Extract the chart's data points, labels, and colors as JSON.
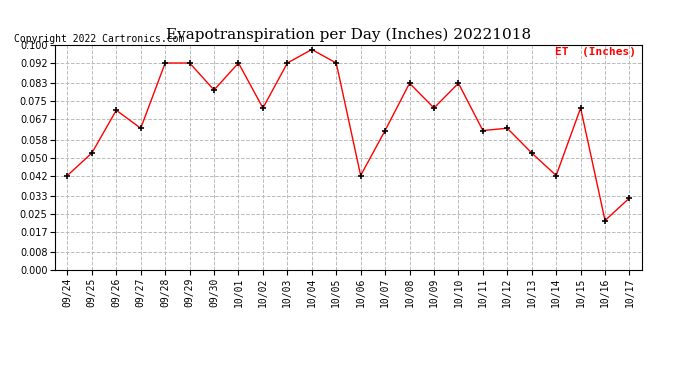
{
  "title": "Evapotranspiration per Day (Inches) 20221018",
  "copyright": "Copyright 2022 Cartronics.com",
  "legend_label": "ET  (Inches)",
  "dates": [
    "09/24",
    "09/25",
    "09/26",
    "09/27",
    "09/28",
    "09/29",
    "09/30",
    "10/01",
    "10/02",
    "10/03",
    "10/04",
    "10/05",
    "10/06",
    "10/07",
    "10/08",
    "10/09",
    "10/10",
    "10/11",
    "10/12",
    "10/13",
    "10/14",
    "10/15",
    "10/16",
    "10/17"
  ],
  "values": [
    0.042,
    0.052,
    0.071,
    0.063,
    0.092,
    0.092,
    0.08,
    0.092,
    0.072,
    0.092,
    0.098,
    0.092,
    0.042,
    0.062,
    0.083,
    0.072,
    0.083,
    0.062,
    0.063,
    0.052,
    0.042,
    0.072,
    0.022,
    0.032
  ],
  "ylim": [
    0.0,
    0.1
  ],
  "yticks": [
    0.0,
    0.008,
    0.017,
    0.025,
    0.033,
    0.042,
    0.05,
    0.058,
    0.067,
    0.075,
    0.083,
    0.092,
    0.1
  ],
  "line_color": "red",
  "marker": "+",
  "marker_color": "black",
  "grid_color": "#bbbbbb",
  "background_color": "#ffffff",
  "title_fontsize": 11,
  "tick_fontsize": 7,
  "legend_color": "red",
  "legend_fontsize": 8,
  "copyright_fontsize": 7,
  "copyright_color": "black"
}
